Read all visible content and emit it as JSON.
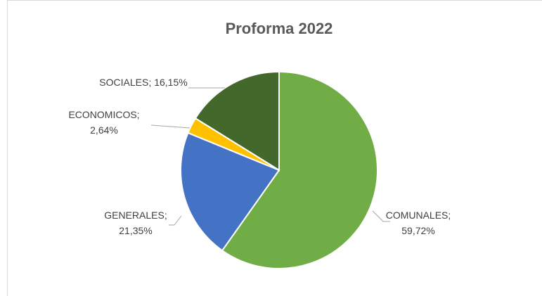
{
  "chart_data": {
    "type": "pie",
    "title": "Proforma 2022",
    "categories": [
      "COMUNALES",
      "GENERALES",
      "ECONOMICOS",
      "SOCIALES"
    ],
    "values": [
      59.72,
      21.35,
      2.64,
      16.15
    ],
    "value_labels": [
      "59,72%",
      "21,35%",
      "2,64%",
      "16,15%"
    ],
    "label_separator": ";",
    "colors": [
      "#70ad47",
      "#4472c4",
      "#ffc000",
      "#43682b"
    ]
  }
}
